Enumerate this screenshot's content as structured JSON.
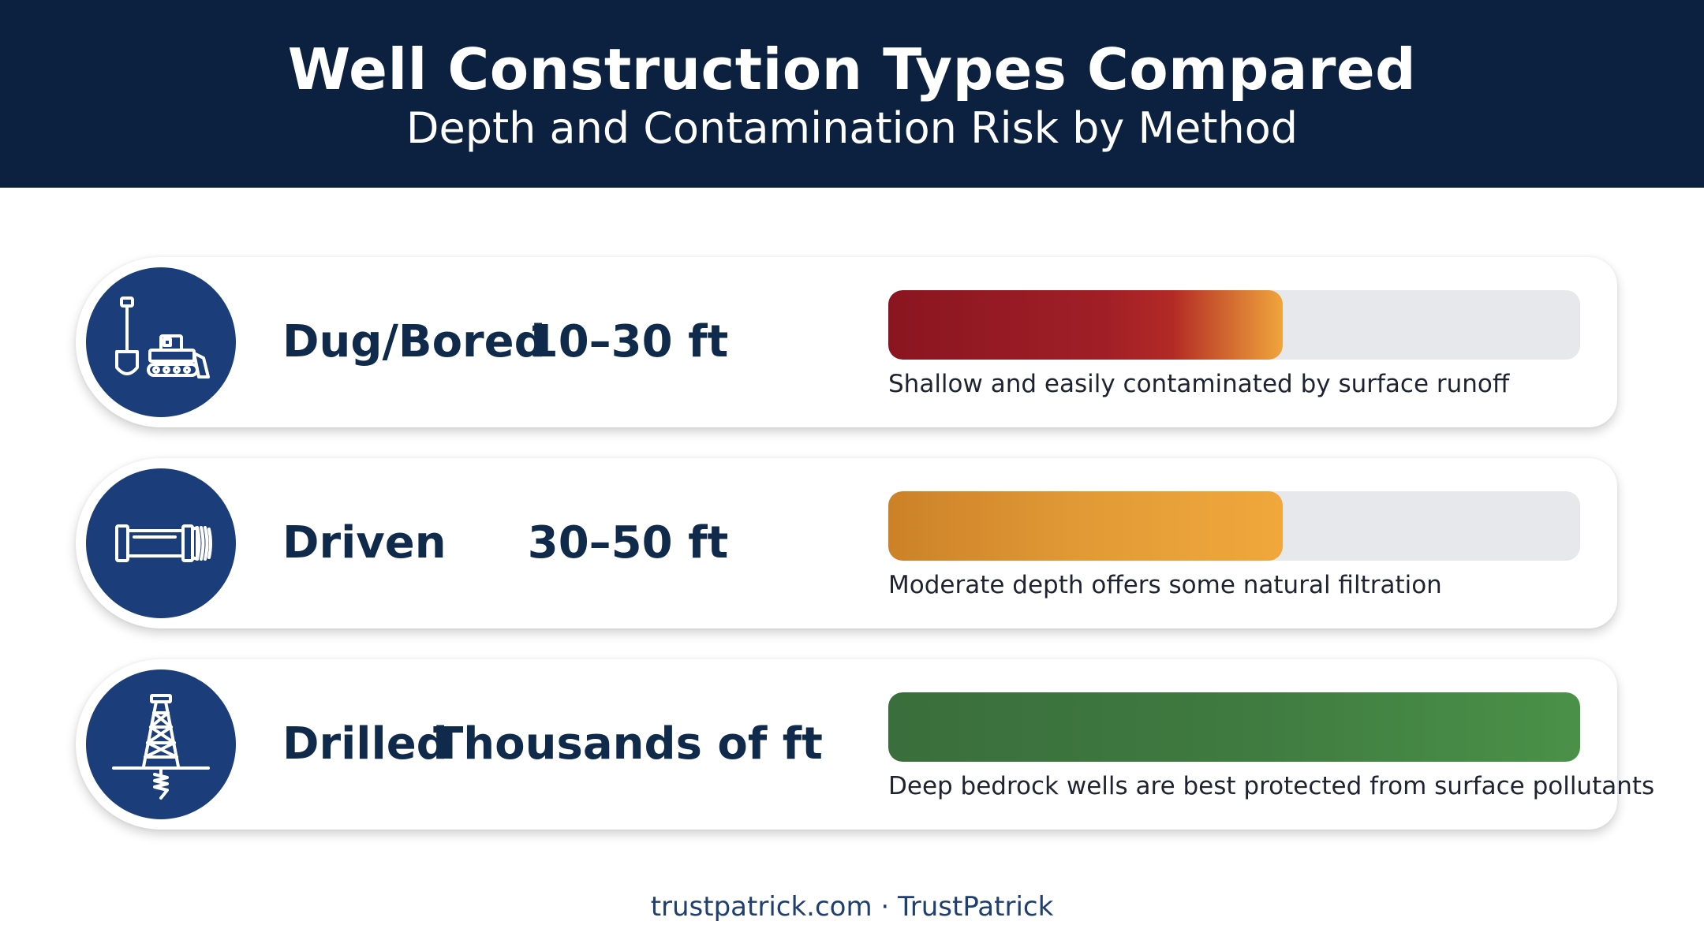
{
  "header": {
    "title": "Well Construction Types Compared",
    "subtitle": "Depth and Contamination Risk by Method"
  },
  "rows": [
    {
      "method": "Dug/Bored",
      "depth": "10–30 ft",
      "protection_level": 0.57,
      "description": "Shallow and easily contaminated by surface runoff",
      "icon": "shovel-bulldozer-icon",
      "bar_color": "#9b1c24"
    },
    {
      "method": "Driven",
      "depth": "30–50 ft",
      "protection_level": 0.57,
      "description": "Moderate depth offers some natural filtration",
      "icon": "drive-pipe-icon",
      "bar_color": "#e39a36"
    },
    {
      "method": "Drilled",
      "depth": "Thousands of ft",
      "protection_level": 1.0,
      "description": "Deep bedrock wells are best protected from surface pollutants",
      "icon": "drilling-rig-icon",
      "bar_color": "#3f7a40"
    }
  ],
  "footer": {
    "text": "trustpatrick.com · TrustPatrick"
  },
  "colors": {
    "header_bg": "#0c2140",
    "icon_circle": "#1b3d7a",
    "text_dark": "#102a4c",
    "track": "#e6e8ec"
  }
}
